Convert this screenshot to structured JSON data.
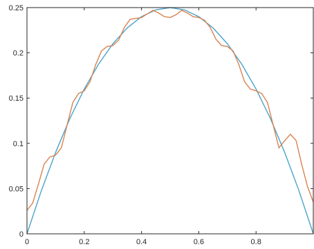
{
  "chart_data": {
    "type": "line",
    "title": "",
    "xlabel": "",
    "ylabel": "",
    "xlim": [
      0,
      1
    ],
    "ylim": [
      0,
      0.25
    ],
    "x_ticks": [
      0,
      0.2,
      0.4,
      0.6,
      0.8
    ],
    "x_tick_labels": [
      "0",
      "0.2",
      "0.4",
      "0.6",
      "0.8"
    ],
    "y_ticks": [
      0,
      0.05,
      0.1,
      0.15,
      0.2,
      0.25
    ],
    "y_tick_labels": [
      "0",
      "0.05",
      "0.1",
      "0.15",
      "0.2",
      "0.25"
    ],
    "grid": false,
    "legend": "none",
    "series": [
      {
        "color": "#4aa3c9",
        "x": [
          0,
          0.05,
          0.1,
          0.15,
          0.2,
          0.25,
          0.3,
          0.35,
          0.4,
          0.45,
          0.5,
          0.55,
          0.6,
          0.65,
          0.7,
          0.75,
          0.8,
          0.85,
          0.9,
          0.95,
          1.0
        ],
        "y": [
          0,
          0.0475,
          0.09,
          0.1275,
          0.16,
          0.1875,
          0.21,
          0.2275,
          0.24,
          0.2475,
          0.25,
          0.2475,
          0.24,
          0.2275,
          0.21,
          0.1875,
          0.16,
          0.1275,
          0.09,
          0.0475,
          0
        ]
      },
      {
        "color": "#d9824f",
        "x": [
          0,
          0.02,
          0.04,
          0.06,
          0.08,
          0.1,
          0.12,
          0.14,
          0.16,
          0.18,
          0.2,
          0.22,
          0.24,
          0.26,
          0.28,
          0.3,
          0.32,
          0.34,
          0.36,
          0.38,
          0.4,
          0.42,
          0.44,
          0.46,
          0.48,
          0.5,
          0.52,
          0.54,
          0.56,
          0.58,
          0.6,
          0.62,
          0.64,
          0.66,
          0.68,
          0.7,
          0.72,
          0.74,
          0.76,
          0.78,
          0.8,
          0.82,
          0.84,
          0.86,
          0.88,
          0.9,
          0.92,
          0.94,
          0.96,
          0.98,
          1.0
        ],
        "y": [
          0.026,
          0.034,
          0.055,
          0.077,
          0.085,
          0.087,
          0.095,
          0.12,
          0.145,
          0.155,
          0.158,
          0.168,
          0.187,
          0.202,
          0.207,
          0.208,
          0.214,
          0.228,
          0.237,
          0.238,
          0.239,
          0.243,
          0.247,
          0.244,
          0.24,
          0.239,
          0.242,
          0.247,
          0.244,
          0.24,
          0.239,
          0.236,
          0.228,
          0.215,
          0.208,
          0.207,
          0.202,
          0.187,
          0.168,
          0.16,
          0.158,
          0.155,
          0.145,
          0.12,
          0.095,
          0.103,
          0.11,
          0.103,
          0.076,
          0.052,
          0.035
        ]
      }
    ]
  }
}
